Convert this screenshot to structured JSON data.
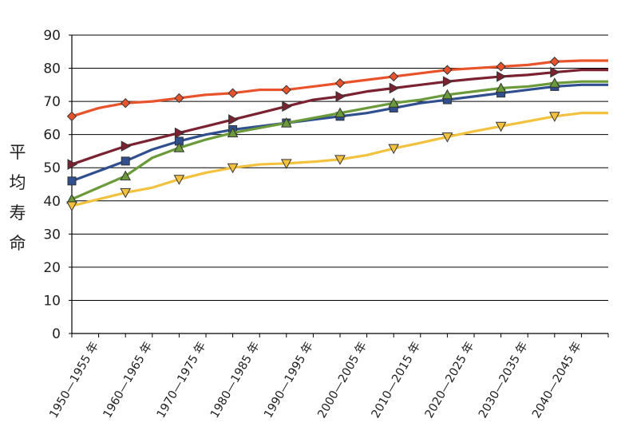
{
  "chart_data": {
    "type": "line",
    "ylabel": "平均寿命",
    "ylim": [
      0,
      90
    ],
    "yticks": [
      0,
      10,
      20,
      30,
      40,
      50,
      60,
      70,
      80,
      90
    ],
    "grid": true,
    "legend": "none",
    "x_ticklabels": [
      "1950—1955 年",
      "1960—1965 年",
      "1970—1975 年",
      "1980—1985 年",
      "1990—1995 年",
      "2000—2005 年",
      "2010—2015 年",
      "2020—2025 年",
      "2030—2035 年",
      "2040—2045 年"
    ],
    "series": [
      {
        "marker": "diamond",
        "color": "#e8532b",
        "values": [
          65.5,
          68,
          69.5,
          70,
          71,
          72,
          72.5,
          73.5,
          73.5,
          74.5,
          75.5,
          76.5,
          77.5,
          78.5,
          79.5,
          80,
          80.5,
          81,
          82,
          82.3
        ]
      },
      {
        "marker": "triangle-right",
        "color": "#7b2230",
        "values": [
          51,
          53.8,
          56.5,
          58.5,
          60.5,
          62.5,
          64.5,
          66.5,
          68.5,
          70.5,
          71.5,
          73,
          74,
          75,
          76,
          76.8,
          77.5,
          78,
          78.8,
          79.5
        ]
      },
      {
        "marker": "square",
        "color": "#2f4f8f",
        "values": [
          46,
          49,
          52,
          55.5,
          58,
          60,
          61.5,
          62.5,
          63.5,
          64.5,
          65.5,
          66.5,
          68,
          69.5,
          70.5,
          71.5,
          72.5,
          73.5,
          74.5,
          75
        ]
      },
      {
        "marker": "triangle-up",
        "color": "#6a9a3a",
        "values": [
          40.5,
          44,
          47.5,
          53,
          56,
          58.5,
          60.5,
          62,
          63.5,
          65,
          66.5,
          68,
          69.5,
          70.5,
          72,
          73,
          74,
          74.5,
          75.5,
          76
        ]
      },
      {
        "marker": "triangle-down",
        "color": "#f2c23e",
        "values": [
          38.5,
          40.5,
          42.5,
          44,
          46.5,
          48.5,
          50,
          51,
          51.3,
          51.8,
          52.5,
          53.8,
          55.8,
          57.5,
          59.3,
          61,
          62.5,
          64,
          65.5,
          66.5
        ]
      }
    ]
  }
}
